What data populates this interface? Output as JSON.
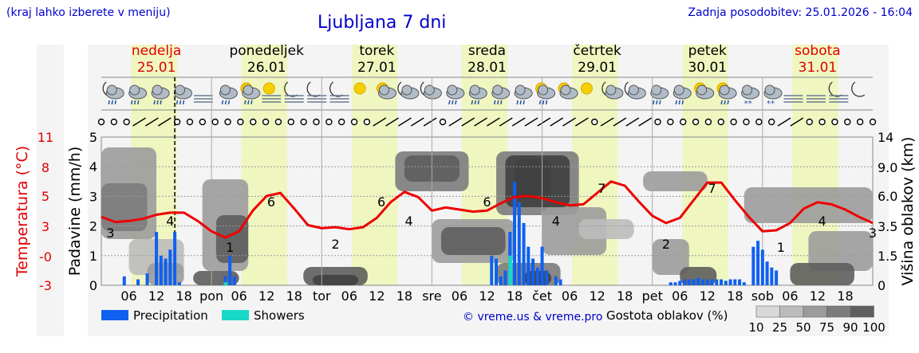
{
  "header": {
    "note": "(kraj lahko izberete v meniju)",
    "title": "Ljubljana 7 dni",
    "updated": "Zadnja posodobitev: 25.01.2026 - 16:04"
  },
  "days": [
    {
      "name": "nedelja",
      "date": "25.01",
      "weekend": true
    },
    {
      "name": "ponedeljek",
      "date": "26.01",
      "weekend": false
    },
    {
      "name": "torek",
      "date": "27.01",
      "weekend": false
    },
    {
      "name": "sreda",
      "date": "28.01",
      "weekend": false
    },
    {
      "name": "četrtek",
      "date": "29.01",
      "weekend": false
    },
    {
      "name": "petek",
      "date": "30.01",
      "weekend": false
    },
    {
      "name": "sobota",
      "date": "31.01",
      "weekend": true
    }
  ],
  "weather_icons": [
    "moon-cloud-rain-icon",
    "cloud-rain-icon",
    "cloud-rain-icon",
    "cloud-rain-icon",
    "fog-icon",
    "cloud-rain-icon",
    "sun-cloud-rain-icon",
    "sun-fog-icon",
    "moon-fog-icon",
    "moon-fog-icon",
    "moon-fog-icon",
    "sun-icon",
    "sun-cloud-icon",
    "moon-cloud-icon",
    "moon-cloud-icon",
    "cloud-rain-icon",
    "cloud-rain-icon",
    "cloud-rain-icon",
    "cloud-rain-icon",
    "sun-cloud-rain-icon",
    "sun-cloud-icon",
    "sun-icon",
    "moon-cloud-icon",
    "moon-cloud-icon",
    "cloud-rain-icon",
    "cloud-rain-icon",
    "sun-cloud-icon",
    "sun-cloud-rain-icon",
    "cloud-snow-icon",
    "cloud-snow-icon",
    "fog-icon",
    "fog-icon",
    "moon-fog-icon",
    "moon-icon"
  ],
  "chart_data": {
    "type": "line",
    "title": "",
    "x_ticks": [
      "06",
      "12",
      "18",
      "pon",
      "06",
      "12",
      "18",
      "tor",
      "06",
      "12",
      "18",
      "sre",
      "06",
      "12",
      "18",
      "čet",
      "06",
      "12",
      "18",
      "pet",
      "06",
      "12",
      "18",
      "sob",
      "06",
      "12",
      "18"
    ],
    "x_hours_range": [
      0,
      168
    ],
    "left_axis": {
      "label": "Padavine (mm/h)",
      "ticks": [
        "0",
        "1",
        "2",
        "3",
        "4",
        "5"
      ],
      "range": [
        0,
        5
      ]
    },
    "temperature_axis": {
      "label": "Temperatura (°C)",
      "ticks": [
        "-3",
        "-0",
        "3",
        "5",
        "8",
        "11"
      ],
      "range": [
        -3,
        11
      ],
      "color": "#e00000"
    },
    "right_axis": {
      "label": "Višina oblakov (km)",
      "ticks": [
        "0",
        "1.5",
        "3.5",
        "6.0",
        "9.0",
        "14"
      ]
    },
    "now_marker_hour": 16,
    "series": [
      {
        "kind": "temperature",
        "color": "#ee0000",
        "hours": [
          0,
          3,
          6,
          9,
          12,
          15,
          18,
          21,
          24,
          27,
          30,
          33,
          36,
          39,
          42,
          45,
          48,
          51,
          54,
          57,
          60,
          63,
          66,
          69,
          72,
          75,
          78,
          81,
          84,
          87,
          90,
          93,
          96,
          99,
          102,
          105,
          108,
          111,
          114,
          117,
          120,
          123,
          126,
          129,
          132,
          135,
          138,
          141,
          144,
          147,
          150,
          153,
          156,
          159,
          162,
          165,
          168
        ],
        "values": [
          3.6,
          3.1,
          3.2,
          3.4,
          3.8,
          4.0,
          4.0,
          3.2,
          2.2,
          1.6,
          2.2,
          4.2,
          5.6,
          5.9,
          4.4,
          2.8,
          2.5,
          2.6,
          2.4,
          2.6,
          3.5,
          5.0,
          6.0,
          5.5,
          4.2,
          4.5,
          4.3,
          4.1,
          4.2,
          4.9,
          5.5,
          5.6,
          5.4,
          5.0,
          4.7,
          4.8,
          5.9,
          7.0,
          6.6,
          5.1,
          3.7,
          3.0,
          3.5,
          5.2,
          6.9,
          6.9,
          5.2,
          3.6,
          2.2,
          2.3,
          3.0,
          4.4,
          5.0,
          4.8,
          4.3,
          3.6,
          3.0
        ]
      },
      {
        "kind": "precipitation",
        "name": "Precipitation",
        "color": "#1060f0",
        "hours": [
          5,
          8,
          10,
          12,
          13,
          14,
          15,
          16,
          17,
          27,
          28,
          29,
          85,
          86,
          87,
          88,
          89,
          90,
          91,
          92,
          93,
          94,
          95,
          96,
          97,
          99,
          100,
          124,
          125,
          126,
          127,
          128,
          129,
          130,
          131,
          132,
          133,
          134,
          135,
          136,
          137,
          138,
          139,
          140,
          142,
          143,
          144,
          145,
          146,
          147
        ],
        "values": [
          0.3,
          0.2,
          0.4,
          1.8,
          1.0,
          0.9,
          1.2,
          1.8,
          0.1,
          0.3,
          1.0,
          0.3,
          1.0,
          0.9,
          0.3,
          0.5,
          1.8,
          3.5,
          2.8,
          2.1,
          1.3,
          0.9,
          0.6,
          1.3,
          0.5,
          0.3,
          0.2,
          0.1,
          0.1,
          0.15,
          0.2,
          0.2,
          0.2,
          0.25,
          0.2,
          0.2,
          0.2,
          0.2,
          0.2,
          0.15,
          0.2,
          0.2,
          0.2,
          0.1,
          1.3,
          1.5,
          1.2,
          0.8,
          0.6,
          0.5
        ]
      },
      {
        "kind": "showers",
        "name": "Showers",
        "color": "#18d8c8",
        "hours": [
          27,
          89
        ],
        "values": [
          0.1,
          1.0
        ]
      }
    ],
    "temperature_labels": [
      {
        "hour": 2,
        "value": "3"
      },
      {
        "hour": 15,
        "value": "4"
      },
      {
        "hour": 28,
        "value": "1"
      },
      {
        "hour": 37,
        "value": "6"
      },
      {
        "hour": 51,
        "value": "2"
      },
      {
        "hour": 61,
        "value": "6"
      },
      {
        "hour": 67,
        "value": "4"
      },
      {
        "hour": 84,
        "value": "6"
      },
      {
        "hour": 99,
        "value": "4"
      },
      {
        "hour": 109,
        "value": "7"
      },
      {
        "hour": 123,
        "value": "2"
      },
      {
        "hour": 133,
        "value": "7"
      },
      {
        "hour": 148,
        "value": "1"
      },
      {
        "hour": 157,
        "value": "4"
      },
      {
        "hour": 168,
        "value": "3"
      }
    ],
    "legend": {
      "precipitation": "Precipitation",
      "showers": "Showers",
      "copyright": "© vreme.us & vreme.pro",
      "cloud_density_label": "Gostota oblakov (%)",
      "cloud_scale": [
        "10",
        "25",
        "50",
        "75",
        "90",
        "100"
      ],
      "cloud_colors": [
        "#d8d8d8",
        "#bcbcbc",
        "#9c9c9c",
        "#7c7c7c",
        "#5e5e5e",
        "#404040"
      ]
    },
    "daylight_color": "#f0f6c0",
    "grid": true
  }
}
